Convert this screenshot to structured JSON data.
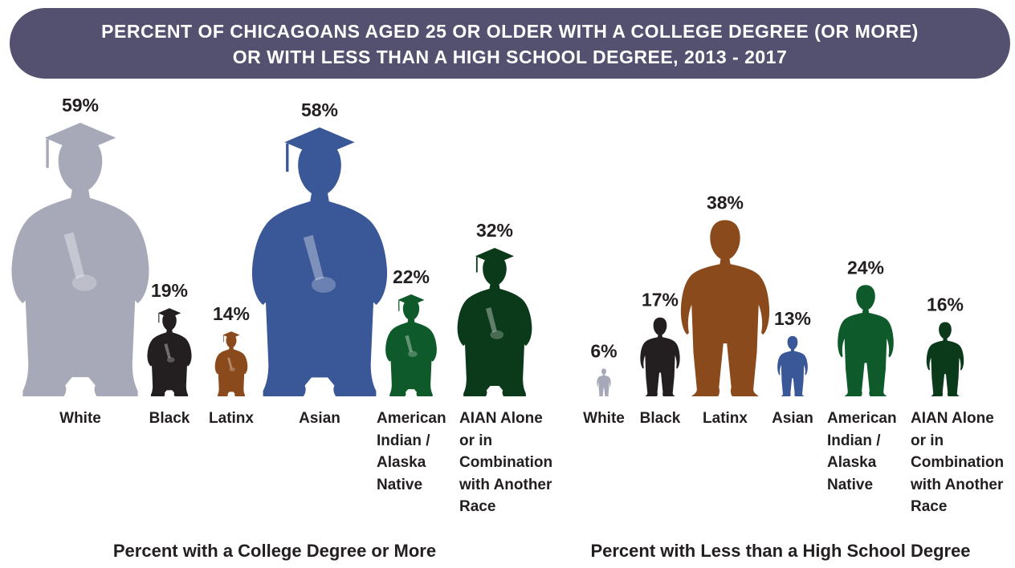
{
  "title": {
    "line1": "PERCENT OF CHICAGOANS AGED 25 OR OLDER WITH A COLLEGE DEGREE (OR MORE)",
    "line2": "OR WITH LESS THAN A HIGH SCHOOL DEGREE, 2013 - 2017"
  },
  "chart_data": [
    {
      "type": "pictogram-bar",
      "title": "Percent with a College Degree or More",
      "categories": [
        "White",
        "Black",
        "Latinx",
        "Asian",
        "American Indian / Alaska Native",
        "AIAN Alone or in Combination with Another Race"
      ],
      "category_lines": [
        [
          "White"
        ],
        [
          "Black"
        ],
        [
          "Latinx"
        ],
        [
          "Asian"
        ],
        [
          "American",
          "Indian /",
          "Alaska",
          "Native"
        ],
        [
          "AIAN Alone",
          "or in",
          "Combination",
          "with Another",
          "Race"
        ]
      ],
      "values": [
        59,
        19,
        14,
        58,
        22,
        32
      ],
      "value_labels": [
        "59%",
        "19%",
        "14%",
        "58%",
        "22%",
        "32%"
      ],
      "colors": [
        "#a7a9b8",
        "#231f20",
        "#8b4a1c",
        "#3a5797",
        "#0e5a2a",
        "#0b3a1a"
      ],
      "icon": "graduate-icon",
      "unit": "%"
    },
    {
      "type": "pictogram-bar",
      "title": "Percent with Less than a High School Degree",
      "categories": [
        "White",
        "Black",
        "Latinx",
        "Asian",
        "American Indian / Alaska Native",
        "AIAN Alone or in Combination with Another Race"
      ],
      "category_lines": [
        [
          "White"
        ],
        [
          "Black"
        ],
        [
          "Latinx"
        ],
        [
          "Asian"
        ],
        [
          "American",
          "Indian /",
          "Alaska",
          "Native"
        ],
        [
          "AIAN Alone",
          "or in",
          "Combination",
          "with Another",
          "Race"
        ]
      ],
      "values": [
        6,
        17,
        38,
        13,
        24,
        16
      ],
      "value_labels": [
        "6%",
        "17%",
        "38%",
        "13%",
        "24%",
        "16%"
      ],
      "colors": [
        "#a7a9b8",
        "#231f20",
        "#8b4a1c",
        "#3a5797",
        "#0e5a2a",
        "#0b3a1a"
      ],
      "icon": "person-icon",
      "unit": "%"
    }
  ]
}
